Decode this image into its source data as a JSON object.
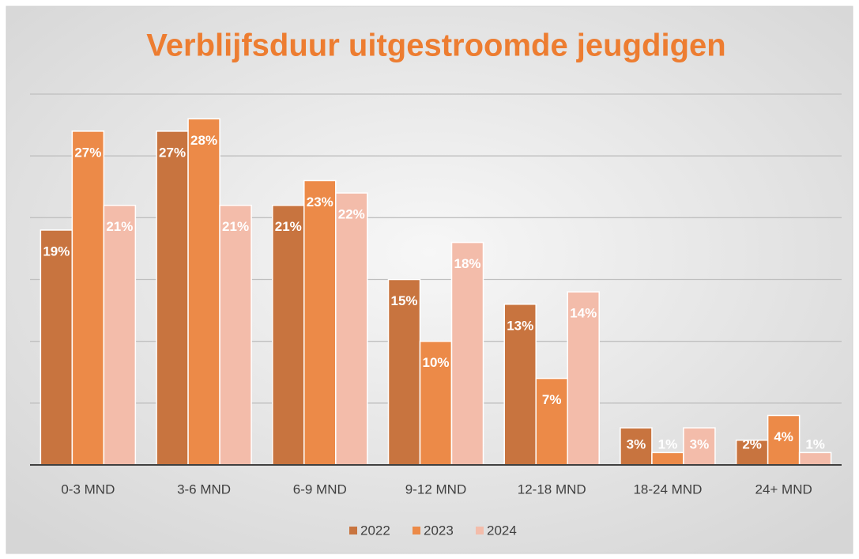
{
  "chart_data": {
    "type": "bar",
    "title": "Verblijfsduur uitgestroomde jeugdigen",
    "categories": [
      "0-3 MND",
      "3-6 MND",
      "6-9 MND",
      "9-12 MND",
      "12-18 MND",
      "18-24 MND",
      "24+ MND"
    ],
    "series": [
      {
        "name": "2022",
        "color": "#c8743f",
        "values": [
          19,
          27,
          21,
          15,
          13,
          3,
          2
        ],
        "value_labels": [
          "19%",
          "27%",
          "21%",
          "15%",
          "13%",
          "3%",
          "2%"
        ]
      },
      {
        "name": "2023",
        "color": "#ec8a48",
        "values": [
          27,
          28,
          23,
          10,
          7,
          1,
          4
        ],
        "value_labels": [
          "27%",
          "28%",
          "23%",
          "10%",
          "7%",
          "1%",
          "4%"
        ]
      },
      {
        "name": "2024",
        "color": "#f3bcaa",
        "values": [
          21,
          21,
          22,
          18,
          14,
          3,
          1
        ],
        "value_labels": [
          "21%",
          "21%",
          "22%",
          "18%",
          "14%",
          "3%",
          "1%"
        ]
      }
    ],
    "ylim": [
      0,
      30
    ],
    "yticks": [
      0,
      5,
      10,
      15,
      20,
      25,
      30
    ],
    "grid": true,
    "legend": "bottom"
  }
}
